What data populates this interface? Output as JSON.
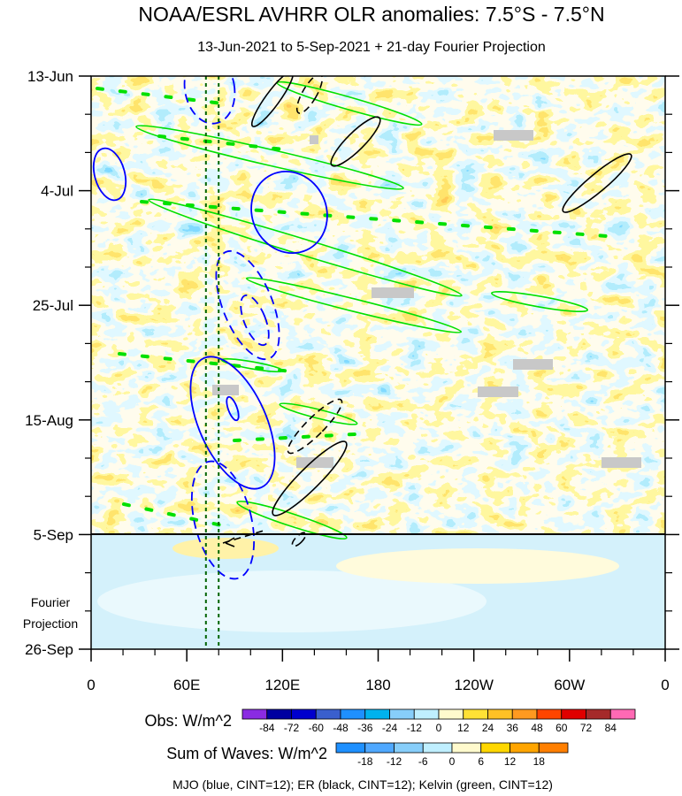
{
  "chart_data": {
    "type": "heatmap",
    "title": "NOAA/ESRL AVHRR OLR anomalies: 7.5°S - 7.5°N",
    "subtitle": "13-Jun-2021 to 5-Sep-2021 + 21-day Fourier Projection",
    "y_axis": {
      "ticks": [
        "13-Jun",
        "4-Jul",
        "25-Jul",
        "15-Aug",
        "5-Sep",
        "26-Sep"
      ],
      "projection_label_line1": "Fourier",
      "projection_label_line2": "Projection",
      "projection_start": "5-Sep",
      "range": [
        "13-Jun-2021",
        "26-Sep-2021"
      ]
    },
    "x_axis": {
      "ticks": [
        "0",
        "60E",
        "120E",
        "180",
        "120W",
        "60W",
        "0"
      ],
      "range_deg_east": [
        0,
        360
      ],
      "tick_values_deg_east": [
        0,
        60,
        120,
        180,
        240,
        300,
        360
      ]
    },
    "reference_longitudes_deg_east": [
      72,
      80
    ],
    "obs_colorbar": {
      "label": "Obs: W/m^2",
      "levels": [
        "-84",
        "-72",
        "-60",
        "-48",
        "-36",
        "-24",
        "-12",
        "0",
        "12",
        "24",
        "36",
        "48",
        "60",
        "72",
        "84"
      ],
      "colors": [
        "#8a2be2",
        "#0000a0",
        "#0000cd",
        "#3a5fcd",
        "#1e90ff",
        "#00b2ee",
        "#87cefa",
        "#bfefff",
        "#fffacd",
        "#ffe135",
        "#ffc125",
        "#ff9a20",
        "#ff4500",
        "#e00000",
        "#a52a2a",
        "#ff69b4"
      ]
    },
    "waves_colorbar": {
      "label": "Sum of Waves: W/m^2",
      "levels": [
        "-18",
        "-12",
        "-6",
        "0",
        "6",
        "12",
        "18"
      ],
      "colors": [
        "#1e90ff",
        "#4fa8ff",
        "#87cefa",
        "#bfefff",
        "#fffacd",
        "#ffd700",
        "#ffa500",
        "#ff7f00"
      ]
    },
    "contours_caption": "MJO (blue, CINT=12); ER (black, CINT=12); Kelvin (green, CINT=12)",
    "contour_colors": {
      "mjo": "#0000ff",
      "er": "#000000",
      "kelvin": "#00e000"
    }
  }
}
